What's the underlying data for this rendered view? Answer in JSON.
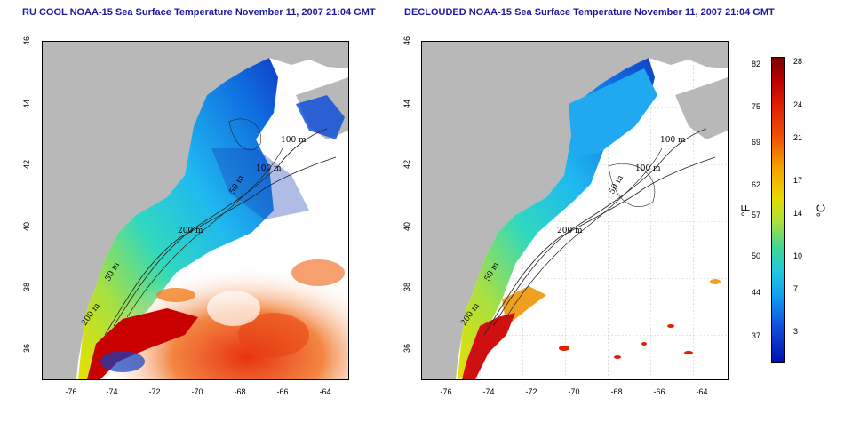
{
  "left_panel": {
    "title": "RU COOL NOAA-15 Sea Surface Temperature November 11, 2007 21:04 GMT",
    "contour_labels": [
      "100 m",
      "100 m",
      "50 m",
      "200 m",
      "50 m",
      "200 m"
    ]
  },
  "right_panel": {
    "title": "DECLOUDED NOAA-15 Sea Surface Temperature November 11, 2007 21:04 GMT",
    "contour_labels": [
      "100 m",
      "100 m",
      "50 m",
      "200 m",
      "50 m",
      "200 m"
    ]
  },
  "axes": {
    "x_ticks": [
      "-76",
      "-74",
      "-72",
      "-70",
      "-68",
      "-66",
      "-64"
    ],
    "y_ticks": [
      "46",
      "44",
      "42",
      "40",
      "38",
      "36"
    ]
  },
  "colorbar": {
    "fahrenheit_ticks": [
      "82",
      "75",
      "69",
      "62",
      "57",
      "50",
      "44",
      "37"
    ],
    "celsius_ticks": [
      "28",
      "24",
      "21",
      "17",
      "14",
      "10",
      "7",
      "3"
    ],
    "fahrenheit_unit": "°F",
    "celsius_unit": "°C",
    "colors": [
      "#7a0000",
      "#e02000",
      "#f7a000",
      "#e8d800",
      "#40d890",
      "#20c8e0",
      "#1050e0",
      "#0010b0"
    ]
  },
  "colors": {
    "land": "#b8b8b8",
    "title": "#1a1aa0"
  }
}
